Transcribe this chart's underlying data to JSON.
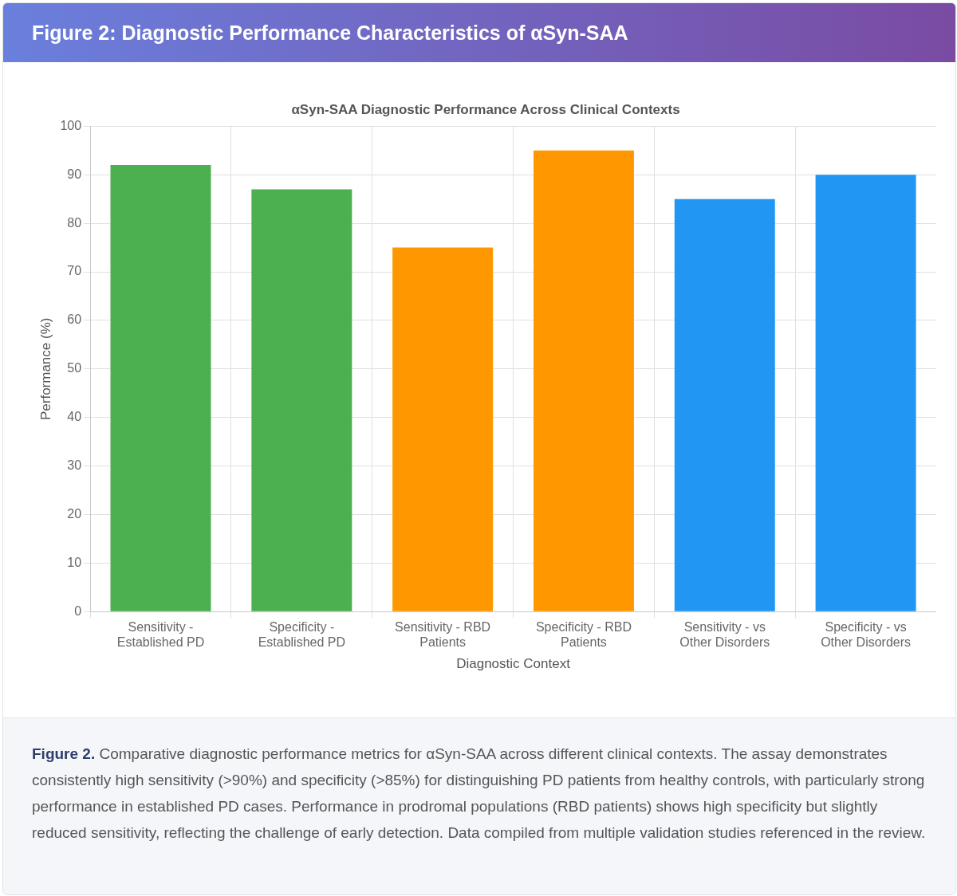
{
  "chart_data": {
    "type": "bar",
    "title": "Figure 2: Diagnostic Performance Characteristics of αSyn-SAA",
    "subtitle": "αSyn-SAA Diagnostic Performance Across Clinical Contexts",
    "xlabel": "Diagnostic Context",
    "ylabel": "Performance (%)",
    "categories": [
      "Sensitivity - Established PD",
      "Specificity - Established PD",
      "Sensitivity - RBD Patients",
      "Specificity - RBD Patients",
      "Sensitivity - vs Other Disorders",
      "Specificity - vs Other Disorders"
    ],
    "values": [
      92,
      87,
      75,
      95,
      85,
      90
    ],
    "colors": [
      "#4caf50",
      "#4caf50",
      "#ff9800",
      "#ff9800",
      "#2196f3",
      "#2196f3"
    ],
    "ylim": [
      0,
      100
    ],
    "yticks": [
      0,
      10,
      20,
      30,
      40,
      50,
      60,
      70,
      80,
      90,
      100
    ],
    "grid": true,
    "legend": false,
    "annotations": [
      "Figure 2.",
      "Comparative diagnostic performance metrics for αSyn-SAA across different clinical contexts. The assay demonstrates consistently high sensitivity (>90%) and specificity (>85%) for distinguishing PD patients from healthy controls, with particularly strong performance in established PD cases. Performance in prodromal populations (RBD patients) shows high specificity but slightly reduced sensitivity, reflecting the challenge of early detection. Data compiled from multiple validation studies referenced in the review."
    ]
  }
}
